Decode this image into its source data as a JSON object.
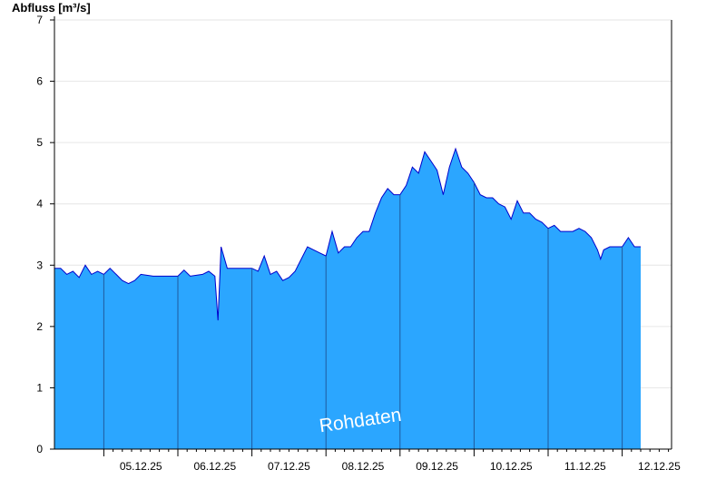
{
  "chart_data": {
    "type": "area",
    "title": "",
    "ylabel": "Abfluss [m³/s]",
    "xlabel": "",
    "ylim": [
      0,
      7
    ],
    "yticks": [
      0,
      1,
      2,
      3,
      4,
      5,
      6,
      7
    ],
    "xlim": [
      "04.12.25 08:00",
      "12.12.25 16:00"
    ],
    "xtick_labels": [
      "05.12.25",
      "06.12.25",
      "07.12.25",
      "08.12.25",
      "09.12.25",
      "10.12.25",
      "11.12.25",
      "12.12.25"
    ],
    "grid": true,
    "fill_color": "#2ba6ff",
    "line_color": "#0000cc",
    "annotation": "Rohdaten",
    "series": [
      {
        "points": [
          [
            "04.12.25 08:00",
            2.95
          ],
          [
            "04.12.25 10:00",
            2.95
          ],
          [
            "04.12.25 12:00",
            2.85
          ],
          [
            "04.12.25 14:00",
            2.9
          ],
          [
            "04.12.25 16:00",
            2.8
          ],
          [
            "04.12.25 18:00",
            3.0
          ],
          [
            "04.12.25 20:00",
            2.85
          ],
          [
            "04.12.25 22:00",
            2.9
          ],
          [
            "05.12.25 00:00",
            2.85
          ],
          [
            "05.12.25 02:00",
            2.95
          ],
          [
            "05.12.25 04:00",
            2.85
          ],
          [
            "05.12.25 06:00",
            2.75
          ],
          [
            "05.12.25 08:00",
            2.7
          ],
          [
            "05.12.25 10:00",
            2.75
          ],
          [
            "05.12.25 12:00",
            2.85
          ],
          [
            "05.12.25 16:00",
            2.82
          ],
          [
            "05.12.25 20:00",
            2.82
          ],
          [
            "06.12.25 00:00",
            2.82
          ],
          [
            "06.12.25 02:00",
            2.92
          ],
          [
            "06.12.25 04:00",
            2.82
          ],
          [
            "06.12.25 08:00",
            2.85
          ],
          [
            "06.12.25 10:00",
            2.9
          ],
          [
            "06.12.25 12:00",
            2.82
          ],
          [
            "06.12.25 13:00",
            2.1
          ],
          [
            "06.12.25 14:00",
            3.3
          ],
          [
            "06.12.25 16:00",
            2.95
          ],
          [
            "06.12.25 20:00",
            2.95
          ],
          [
            "07.12.25 00:00",
            2.95
          ],
          [
            "07.12.25 02:00",
            2.9
          ],
          [
            "07.12.25 04:00",
            3.15
          ],
          [
            "07.12.25 06:00",
            2.85
          ],
          [
            "07.12.25 08:00",
            2.9
          ],
          [
            "07.12.25 10:00",
            2.75
          ],
          [
            "07.12.25 12:00",
            2.8
          ],
          [
            "07.12.25 14:00",
            2.9
          ],
          [
            "07.12.25 16:00",
            3.1
          ],
          [
            "07.12.25 18:00",
            3.3
          ],
          [
            "07.12.25 20:00",
            3.25
          ],
          [
            "07.12.25 22:00",
            3.2
          ],
          [
            "08.12.25 00:00",
            3.15
          ],
          [
            "08.12.25 02:00",
            3.55
          ],
          [
            "08.12.25 04:00",
            3.2
          ],
          [
            "08.12.25 06:00",
            3.3
          ],
          [
            "08.12.25 08:00",
            3.3
          ],
          [
            "08.12.25 10:00",
            3.45
          ],
          [
            "08.12.25 12:00",
            3.55
          ],
          [
            "08.12.25 14:00",
            3.55
          ],
          [
            "08.12.25 16:00",
            3.85
          ],
          [
            "08.12.25 18:00",
            4.1
          ],
          [
            "08.12.25 20:00",
            4.25
          ],
          [
            "08.12.25 22:00",
            4.15
          ],
          [
            "09.12.25 00:00",
            4.15
          ],
          [
            "09.12.25 02:00",
            4.3
          ],
          [
            "09.12.25 04:00",
            4.6
          ],
          [
            "09.12.25 06:00",
            4.5
          ],
          [
            "09.12.25 08:00",
            4.85
          ],
          [
            "09.12.25 10:00",
            4.7
          ],
          [
            "09.12.25 12:00",
            4.55
          ],
          [
            "09.12.25 14:00",
            4.15
          ],
          [
            "09.12.25 16:00",
            4.6
          ],
          [
            "09.12.25 18:00",
            4.9
          ],
          [
            "09.12.25 20:00",
            4.6
          ],
          [
            "09.12.25 22:00",
            4.5
          ],
          [
            "10.12.25 00:00",
            4.35
          ],
          [
            "10.12.25 02:00",
            4.15
          ],
          [
            "10.12.25 04:00",
            4.1
          ],
          [
            "10.12.25 06:00",
            4.1
          ],
          [
            "10.12.25 08:00",
            4.0
          ],
          [
            "10.12.25 10:00",
            3.95
          ],
          [
            "10.12.25 12:00",
            3.75
          ],
          [
            "10.12.25 14:00",
            4.05
          ],
          [
            "10.12.25 16:00",
            3.85
          ],
          [
            "10.12.25 18:00",
            3.85
          ],
          [
            "10.12.25 20:00",
            3.75
          ],
          [
            "10.12.25 22:00",
            3.7
          ],
          [
            "11.12.25 00:00",
            3.6
          ],
          [
            "11.12.25 02:00",
            3.65
          ],
          [
            "11.12.25 04:00",
            3.55
          ],
          [
            "11.12.25 06:00",
            3.55
          ],
          [
            "11.12.25 08:00",
            3.55
          ],
          [
            "11.12.25 10:00",
            3.6
          ],
          [
            "11.12.25 12:00",
            3.55
          ],
          [
            "11.12.25 14:00",
            3.45
          ],
          [
            "11.12.25 16:00",
            3.25
          ],
          [
            "11.12.25 17:00",
            3.1
          ],
          [
            "11.12.25 18:00",
            3.25
          ],
          [
            "11.12.25 20:00",
            3.3
          ],
          [
            "11.12.25 22:00",
            3.3
          ],
          [
            "12.12.25 00:00",
            3.3
          ],
          [
            "12.12.25 02:00",
            3.45
          ],
          [
            "12.12.25 04:00",
            3.3
          ],
          [
            "12.12.25 06:00",
            3.3
          ]
        ]
      }
    ]
  }
}
